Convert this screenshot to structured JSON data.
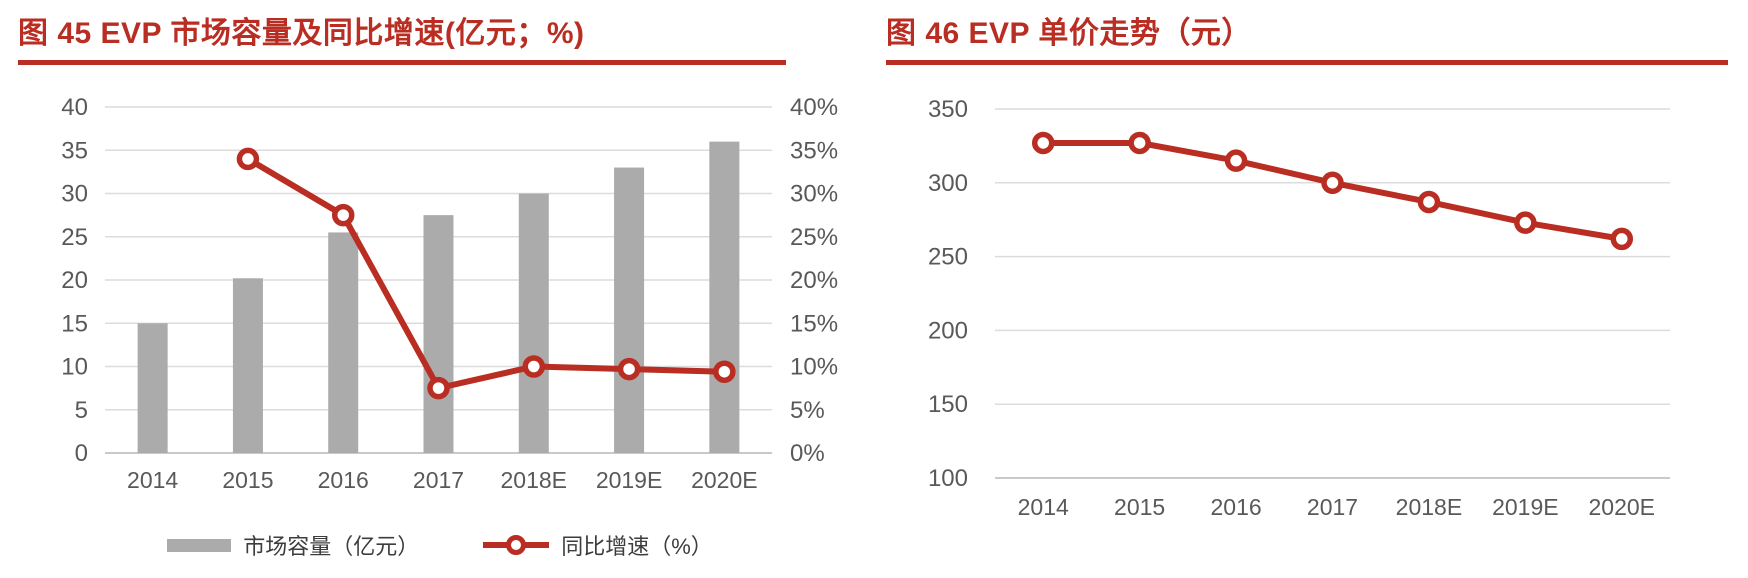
{
  "colors": {
    "red": "#B92D22",
    "bar_gray": "#ABABAB",
    "axis_text": "#595959",
    "legend_text": "#3d3d3d",
    "grid": "#DCDCDC",
    "axis_line": "#C9C9C9"
  },
  "chart_data": [
    {
      "type": "bar",
      "subtype": "bar+line-combo",
      "title": "图 45 EVP 市场容量及同比增速(亿元；%)",
      "categories": [
        "2014",
        "2015",
        "2016",
        "2017",
        "2018E",
        "2019E",
        "2020E"
      ],
      "series": [
        {
          "name": "市场容量（亿元）",
          "type": "bar",
          "axis": "left",
          "color": "#ABABAB",
          "values": [
            15,
            20.2,
            25.5,
            27.5,
            30,
            33,
            36
          ]
        },
        {
          "name": "同比增速（%）",
          "type": "line",
          "axis": "right",
          "color": "#B92D22",
          "values": [
            null,
            34,
            27.5,
            7.5,
            10,
            9.7,
            9.4
          ]
        }
      ],
      "left_axis": {
        "min": 0,
        "max": 40,
        "step": 5,
        "ticks": [
          "0",
          "5",
          "10",
          "15",
          "20",
          "25",
          "30",
          "35",
          "40"
        ]
      },
      "right_axis": {
        "min": 0,
        "max": 40,
        "step": 5,
        "suffix": "%",
        "ticks": [
          "0%",
          "5%",
          "10%",
          "15%",
          "20%",
          "25%",
          "30%",
          "35%",
          "40%"
        ]
      },
      "grid": true,
      "legend_position": "bottom"
    },
    {
      "type": "line",
      "title": "图 46 EVP 单价走势（元）",
      "categories": [
        "2014",
        "2015",
        "2016",
        "2017",
        "2018E",
        "2019E",
        "2020E"
      ],
      "series": [
        {
          "name": "单价（元）",
          "type": "line",
          "color": "#B92D22",
          "values": [
            327,
            327,
            315,
            300,
            287,
            273,
            262
          ]
        }
      ],
      "y_axis": {
        "min": 100,
        "max": 350,
        "step": 50,
        "ticks": [
          "100",
          "150",
          "200",
          "250",
          "300",
          "350"
        ]
      },
      "grid": true,
      "legend_position": "none"
    }
  ]
}
